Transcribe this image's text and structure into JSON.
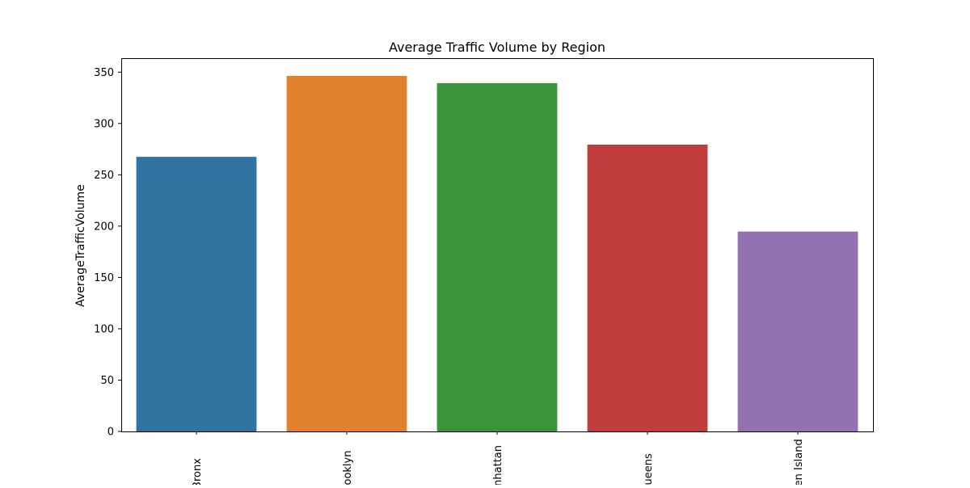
{
  "chart_data": {
    "type": "bar",
    "title": "Average Traffic Volume by Region",
    "xlabel": "",
    "ylabel": "AverageTrafficVolume",
    "categories": [
      "Bronx",
      "Brooklyn",
      "Manhattan",
      "Queens",
      "Staten Island"
    ],
    "values": [
      267.5,
      346.3,
      339.3,
      279.4,
      194.7
    ],
    "colors": [
      "#3274a1",
      "#e1812c",
      "#3a923a",
      "#c03d3e",
      "#9372b2"
    ],
    "ylim": [
      0,
      363.6
    ],
    "yticks": [
      0,
      50,
      100,
      150,
      200,
      250,
      300,
      350
    ],
    "ytick_labels": [
      "0",
      "50",
      "100",
      "150",
      "200",
      "250",
      "300",
      "350"
    ],
    "xtick_rotation": 90,
    "grid": false,
    "legend": "none"
  }
}
